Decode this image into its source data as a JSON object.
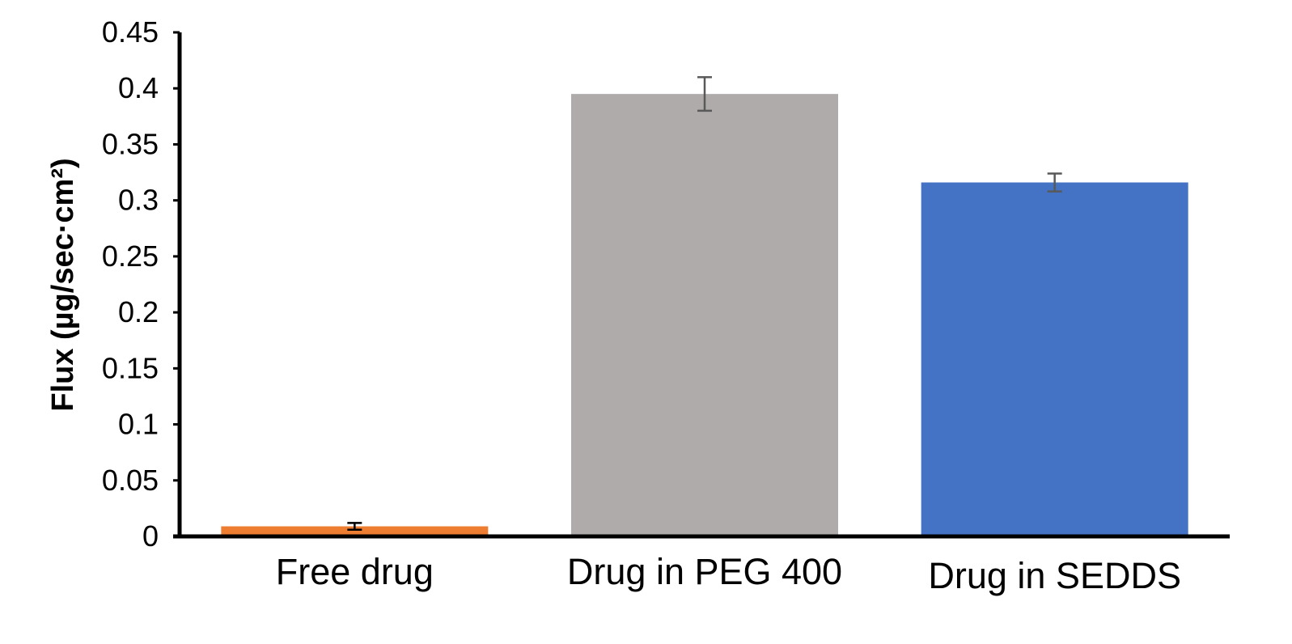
{
  "chart_data": {
    "type": "bar",
    "categories": [
      "Free drug",
      "Drug in PEG 400",
      "Drug in SEDDS"
    ],
    "values": [
      0.009,
      0.395,
      0.316
    ],
    "error": [
      0.003,
      0.015,
      0.008
    ],
    "colors": [
      "#ED7D31",
      "#AFABAA",
      "#4472C4"
    ],
    "error_bar_colors": [
      "#000000",
      "#595959",
      "#595959"
    ],
    "ylabel": "Flux (µg/sec·cm²)",
    "xlabel": "",
    "ylim": [
      0,
      0.45
    ],
    "yticks": [
      0,
      0.05,
      0.1,
      0.15,
      0.2,
      0.25,
      0.3,
      0.35,
      0.4,
      0.45
    ],
    "ytick_labels": [
      "0",
      "0.05",
      "0.1",
      "0.15",
      "0.2",
      "0.25",
      "0.3",
      "0.35",
      "0.4",
      "0.45"
    ],
    "grid": false,
    "legend": "none"
  }
}
